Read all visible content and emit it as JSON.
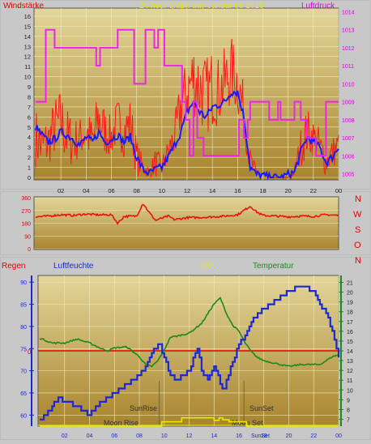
{
  "header": {
    "left_label": "Windstärke",
    "title": "24 hour graph day   Januar 08 2016",
    "right_label": "Luftdruck"
  },
  "colors": {
    "wind_gust": "#ff1a1a",
    "wind_avg": "#1a1aff",
    "pressure": "#ee22ee",
    "direction": "#ee1111",
    "humidity": "#1a28d6",
    "temperature": "#1a8a1a",
    "uv": "#e8e800",
    "rain": "#ee0000",
    "title_yellow": "#e8e800",
    "magenta_text": "#dd00dd",
    "red_text": "#ee0000"
  },
  "compass": [
    "N",
    "W",
    "S",
    "O",
    "N"
  ],
  "chart_data": [
    {
      "type": "line",
      "panel": "wind-pressure",
      "title": "24 hour graph day   Januar 08 2016",
      "x_ticks": [
        "02",
        "04",
        "06",
        "08",
        "10",
        "12",
        "14",
        "16",
        "18",
        "20",
        "22",
        "00"
      ],
      "xlim": [
        0,
        24
      ],
      "y_left": {
        "label": "Windstärke",
        "ticks": [
          "0",
          "1",
          "2",
          "3",
          "4",
          "5",
          "6",
          "7",
          "8",
          "9",
          "10",
          "11",
          "12",
          "13",
          "14",
          "15",
          "16"
        ],
        "ylim": [
          0,
          16.8
        ]
      },
      "y_right": {
        "label": "Luftdruck",
        "ticks": [
          "1005",
          "1006",
          "1007",
          "1008",
          "1009",
          "1010",
          "1011",
          "1012",
          "1013",
          "1014"
        ],
        "ylim": [
          1004.8,
          1014.2
        ]
      },
      "series": [
        {
          "color": "wind_gust",
          "axis": "left",
          "style": "spiky",
          "x": [
            0,
            0.5,
            1,
            1.5,
            2,
            2.5,
            3,
            3.5,
            4,
            4.5,
            5,
            5.5,
            6,
            6.5,
            7,
            7.5,
            8,
            8.5,
            9,
            9.5,
            10,
            10.5,
            11,
            11.5,
            12,
            12.5,
            13,
            13.5,
            14,
            14.5,
            15,
            15.5,
            16,
            16.5,
            17,
            17.5,
            18,
            18.5,
            19,
            19.5,
            20,
            20.5,
            21,
            21.5,
            22,
            22.5,
            23,
            23.5,
            24
          ],
          "y": [
            7,
            6,
            6,
            8,
            9,
            7,
            6,
            6,
            7,
            6,
            9,
            7,
            6,
            8,
            7,
            8,
            4,
            2,
            1,
            3,
            2,
            4,
            6,
            10,
            12,
            14,
            13,
            12,
            13,
            12,
            13,
            14,
            13,
            9,
            3,
            1,
            0.5,
            0,
            0,
            0,
            0,
            1,
            5,
            7,
            6,
            5,
            3,
            4,
            5
          ],
          "low": [
            1,
            0,
            1,
            2,
            2,
            1,
            1,
            2,
            2,
            1,
            3,
            2,
            2,
            3,
            2,
            3,
            0,
            0,
            0,
            0,
            0,
            1,
            2,
            4,
            5,
            6,
            5,
            4,
            5,
            5,
            6,
            7,
            6,
            4,
            0,
            0,
            0,
            0,
            0,
            0,
            0,
            0,
            1,
            2,
            2,
            1,
            0,
            1,
            1
          ]
        },
        {
          "color": "wind_avg",
          "axis": "left",
          "x": [
            0,
            0.5,
            1,
            1.5,
            2,
            2.5,
            3,
            3.5,
            4,
            4.5,
            5,
            5.5,
            6,
            6.5,
            7,
            7.5,
            8,
            8.5,
            9,
            9.5,
            10,
            10.5,
            11,
            11.5,
            12,
            12.5,
            13,
            13.5,
            14,
            14.5,
            15,
            15.5,
            16,
            16.5,
            17,
            17.5,
            18,
            18.5,
            19,
            19.5,
            20,
            20.5,
            21,
            21.5,
            22,
            22.5,
            23,
            23.5,
            24
          ],
          "y": [
            5,
            4.2,
            3.5,
            3.8,
            4.5,
            4.2,
            3.8,
            3.2,
            4,
            3.5,
            4.5,
            3.5,
            3.8,
            4.2,
            3.5,
            4,
            2,
            0.8,
            0.4,
            0.8,
            1,
            2,
            3.2,
            4.5,
            6.5,
            7.5,
            6.5,
            6,
            7,
            7.2,
            7.5,
            8.5,
            8.5,
            6,
            1,
            0.3,
            0.2,
            0,
            0,
            0,
            0.3,
            0.5,
            2.5,
            4,
            3.5,
            3,
            1.5,
            2,
            3
          ]
        },
        {
          "color": "pressure",
          "axis": "right",
          "style": "step",
          "x": [
            0,
            0.8,
            0.8,
            1.5,
            1.5,
            4.8,
            4.8,
            5.1,
            5.1,
            6.5,
            6.5,
            7.8,
            7.8,
            8.7,
            8.7,
            9.4,
            9.4,
            9.7,
            9.7,
            10.2,
            10.2,
            11.6,
            11.6,
            11.9,
            11.9,
            12.2,
            12.2,
            12.5,
            12.5,
            12.8,
            12.8,
            13.3,
            13.3,
            16.1,
            16.1,
            16.5,
            16.5,
            16.8,
            16.8,
            17.0,
            17.0,
            18.5,
            18.5,
            19.2,
            19.2,
            19.4,
            19.4,
            20.5,
            20.5,
            21.0,
            21.0,
            21.5,
            21.5,
            22.2,
            22.2,
            23.0,
            23.0,
            24
          ],
          "y": [
            1009,
            1009,
            1013,
            1013,
            1012,
            1012,
            1011,
            1011,
            1012,
            1012,
            1013,
            1013,
            1010,
            1010,
            1013,
            1013,
            1012,
            1012,
            1013,
            1013,
            1011,
            1011,
            1009,
            1009,
            1008,
            1008,
            1006,
            1006,
            1009,
            1009,
            1007,
            1007,
            1006,
            1006,
            1008,
            1008,
            1007,
            1007,
            1008,
            1008,
            1009,
            1009,
            1008,
            1008,
            1009,
            1009,
            1008,
            1008,
            1009,
            1009,
            1008,
            1008,
            1007,
            1007,
            1006,
            1006,
            1009,
            1009
          ]
        }
      ]
    },
    {
      "type": "line",
      "panel": "wind-direction",
      "y_ticks": [
        "360",
        "270",
        "180",
        "90",
        "0"
      ],
      "ylim": [
        0,
        360
      ],
      "xlim": [
        0,
        24
      ],
      "series": [
        {
          "color": "direction",
          "x": [
            0,
            1,
            2,
            3,
            4,
            5,
            6,
            6.5,
            7,
            8,
            8.5,
            9,
            9.5,
            10,
            10.5,
            11,
            12,
            13,
            14,
            15,
            16,
            16.5,
            17,
            17.5,
            18,
            19,
            20,
            21,
            22,
            23,
            24
          ],
          "y": [
            225,
            230,
            240,
            235,
            245,
            238,
            240,
            180,
            228,
            230,
            320,
            255,
            200,
            215,
            230,
            205,
            220,
            220,
            225,
            230,
            240,
            270,
            300,
            260,
            235,
            230,
            225,
            230,
            228,
            240,
            235
          ]
        }
      ]
    },
    {
      "type": "line",
      "panel": "humidity-temperature",
      "labels": {
        "rain": "Regen",
        "humidity": "Luftfeuchte",
        "uv": "UV",
        "temperature": "Temperatur"
      },
      "x_ticks": [
        "02",
        "04",
        "06",
        "08",
        "10",
        "12",
        "14",
        "16",
        "18",
        "20",
        "22",
        "00"
      ],
      "xlim": [
        0,
        24
      ],
      "y_left": {
        "label": "Luftfeuchte",
        "ticks": [
          "60",
          "65",
          "70",
          "75",
          "80",
          "85",
          "90"
        ],
        "ylim": [
          57.5,
          91.5
        ]
      },
      "y_right": {
        "label": "Temperatur",
        "ticks": [
          "7",
          "8",
          "9",
          "10",
          "11",
          "12",
          "13",
          "14",
          "15",
          "16",
          "17",
          "18",
          "19",
          "20",
          "21"
        ],
        "ylim": [
          6.3,
          21.7
        ]
      },
      "rain_label": "0",
      "annotations": [
        "SunRise",
        "SunSet",
        "Moon Rise",
        "Moon Set",
        "SunSet"
      ],
      "series": [
        {
          "name": "Luftfeuchte",
          "color": "humidity",
          "axis": "left",
          "style": "step",
          "x": [
            0,
            0.4,
            1,
            1.5,
            2,
            3,
            3.5,
            4,
            4.5,
            5,
            6,
            7,
            8,
            8.5,
            9,
            9.6,
            10,
            10.5,
            11,
            12,
            12.4,
            12.7,
            13,
            13.5,
            14,
            14.3,
            14.8,
            15,
            15.5,
            16,
            16.5,
            17,
            18,
            19,
            20,
            21,
            22,
            22.5,
            23,
            23.5,
            24
          ],
          "y": [
            59,
            60,
            62,
            64,
            63,
            62,
            61,
            60,
            62,
            63,
            65,
            67,
            69,
            71,
            74,
            76,
            73,
            69,
            68,
            70,
            73,
            75,
            70,
            68,
            71,
            69,
            65,
            68,
            72,
            76,
            78,
            81,
            84,
            86,
            88,
            89,
            88,
            85,
            83,
            79,
            73
          ]
        },
        {
          "name": "Temperatur",
          "color": "temperature",
          "axis": "right",
          "x": [
            0,
            1,
            2,
            3,
            4,
            5,
            5.5,
            6,
            7,
            8,
            8.5,
            9,
            9.5,
            10,
            10.5,
            11,
            12,
            13,
            14,
            14.5,
            15,
            15.5,
            16,
            16.5,
            17,
            17.5,
            18,
            19,
            20,
            21,
            22,
            22.5,
            23,
            23.5,
            24
          ],
          "y": [
            15.3,
            14.8,
            14.8,
            15.2,
            14.8,
            14.2,
            14.0,
            14.3,
            14.4,
            13.4,
            12.6,
            12.4,
            13.0,
            14.1,
            15.4,
            15.5,
            15.8,
            16.8,
            18.8,
            19.4,
            17.8,
            16.6,
            16.0,
            14.8,
            13.9,
            13.3,
            13.0,
            12.7,
            12.4,
            12.6,
            12.6,
            12.6,
            13.0,
            13.4,
            13.6
          ]
        },
        {
          "name": "UV",
          "color": "uv",
          "axis": "right",
          "style": "step",
          "x": [
            0,
            9.8,
            9.8,
            11.4,
            11.4,
            14.0,
            14.0,
            14.4,
            14.4,
            14.7,
            14.7,
            15.2,
            15.2,
            16.6,
            16.6,
            24
          ],
          "y": [
            6.3,
            6.3,
            6.75,
            6.75,
            7.15,
            7.15,
            6.9,
            6.9,
            7.15,
            7.15,
            6.95,
            6.95,
            6.75,
            6.75,
            6.3,
            6.3
          ]
        },
        {
          "name": "Regen",
          "color": "rain",
          "axis": "right",
          "x": [
            0,
            24
          ],
          "y": [
            14,
            14
          ]
        }
      ]
    }
  ]
}
